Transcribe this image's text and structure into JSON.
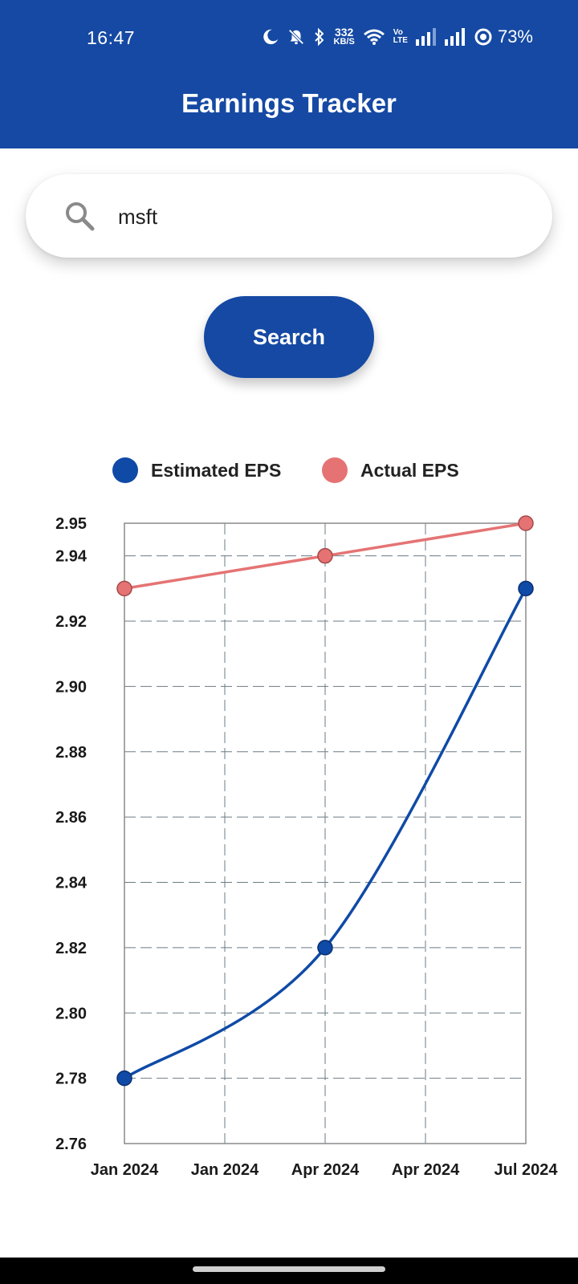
{
  "status_bar": {
    "time": "16:47",
    "net_speed_value": "332",
    "net_speed_unit": "KB/S",
    "volte_top": "Vo",
    "volte_bottom": "LTE",
    "battery": "73%",
    "icons": [
      "moon-icon",
      "bell-off-icon",
      "bluetooth-icon",
      "wifi-icon",
      "signal-icon",
      "signal-icon",
      "battery-ring-icon"
    ]
  },
  "app": {
    "title": "Earnings Tracker"
  },
  "search": {
    "value": "msft",
    "button_label": "Search"
  },
  "colors": {
    "primary": "#1549a3",
    "estimated": "#0f4aa6",
    "actual": "#e57373"
  },
  "chart_data": {
    "type": "line",
    "title": "",
    "xlabel": "",
    "ylabel": "",
    "x_tick_labels": [
      "Jan 2024",
      "Jan 2024",
      "Apr 2024",
      "Apr 2024",
      "Jul 2024"
    ],
    "y_tick_labels": [
      "2.76",
      "2.78",
      "2.80",
      "2.82",
      "2.84",
      "2.86",
      "2.88",
      "2.90",
      "2.92",
      "2.94",
      "2.95"
    ],
    "ylim": [
      2.76,
      2.95
    ],
    "grid": true,
    "legend": "top-center",
    "series": [
      {
        "name": "Estimated EPS",
        "points": [
          {
            "x": "Jan 2024",
            "y": 2.78
          },
          {
            "x": "Apr 2024",
            "y": 2.82
          },
          {
            "x": "Jul 2024",
            "y": 2.93
          }
        ]
      },
      {
        "name": "Actual EPS",
        "points": [
          {
            "x": "Jan 2024",
            "y": 2.93
          },
          {
            "x": "Apr 2024",
            "y": 2.94
          },
          {
            "x": "Jul 2024",
            "y": 2.95
          }
        ]
      }
    ]
  }
}
